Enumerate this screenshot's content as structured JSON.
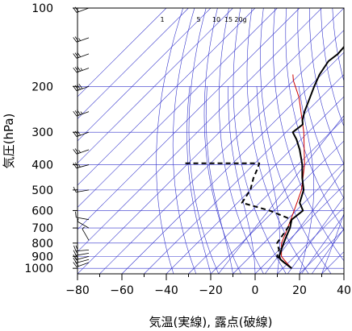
{
  "chart_data": {
    "type": "line",
    "title": "",
    "xlabel": "気温(実線), 露点(破線)",
    "ylabel": "気圧(hPa)",
    "xlim": [
      -80,
      40
    ],
    "ylim": [
      1050,
      100
    ],
    "y_scale": "log",
    "x_ticks": [
      -80,
      -60,
      -40,
      -20,
      0,
      20,
      40
    ],
    "y_ticks": [
      100,
      200,
      300,
      400,
      500,
      600,
      700,
      800,
      900,
      1000
    ],
    "mixing_ratio_labels": [
      "1",
      "5",
      "10",
      "15",
      "20g"
    ],
    "colors": {
      "temperature": "#000000",
      "dewpoint": "#000000",
      "parcel": "#cc0000",
      "background_lines": "#3333cc",
      "wind_barbs": "#000000"
    },
    "series": [
      {
        "type": "temperature",
        "style": "solid",
        "points": [
          {
            "x": 14,
            "y": 1000
          },
          {
            "x": 11,
            "y": 975
          },
          {
            "x": 8,
            "y": 950
          },
          {
            "x": 5,
            "y": 925
          },
          {
            "x": 3,
            "y": 900
          },
          {
            "x": 1,
            "y": 850
          },
          {
            "x": -1,
            "y": 800
          },
          {
            "x": -3,
            "y": 750
          },
          {
            "x": -5,
            "y": 700
          },
          {
            "x": -8,
            "y": 650
          },
          {
            "x": -7,
            "y": 600
          },
          {
            "x": -12,
            "y": 560
          },
          {
            "x": -16,
            "y": 500
          },
          {
            "x": -22,
            "y": 450
          },
          {
            "x": -28,
            "y": 400
          },
          {
            "x": -36,
            "y": 350
          },
          {
            "x": -42,
            "y": 320
          },
          {
            "x": -47,
            "y": 300
          },
          {
            "x": -46,
            "y": 280
          },
          {
            "x": -48,
            "y": 270
          },
          {
            "x": -51,
            "y": 250
          },
          {
            "x": -55,
            "y": 220
          },
          {
            "x": -58,
            "y": 200
          },
          {
            "x": -61,
            "y": 180
          },
          {
            "x": -63,
            "y": 160
          },
          {
            "x": -62,
            "y": 150
          },
          {
            "x": -63,
            "y": 130
          },
          {
            "x": -65,
            "y": 110
          },
          {
            "x": -68,
            "y": 100
          }
        ]
      },
      {
        "type": "dewpoint",
        "style": "dashed",
        "points": [
          {
            "x": 14,
            "y": 1000
          },
          {
            "x": 11,
            "y": 975
          },
          {
            "x": 8,
            "y": 950
          },
          {
            "x": 5,
            "y": 925
          },
          {
            "x": 2,
            "y": 900
          },
          {
            "x": 0,
            "y": 850
          },
          {
            "x": -4,
            "y": 800
          },
          {
            "x": -5,
            "y": 750
          },
          {
            "x": -6,
            "y": 700
          },
          {
            "x": -8,
            "y": 650
          },
          {
            "x": -22,
            "y": 600
          },
          {
            "x": -38,
            "y": 560
          },
          {
            "x": -40,
            "y": 500
          },
          {
            "x": -44,
            "y": 450
          },
          {
            "x": -46,
            "y": 420
          },
          {
            "x": -48,
            "y": 395
          },
          {
            "x": -82,
            "y": 395
          }
        ]
      },
      {
        "type": "parcel",
        "style": "solid",
        "points": [
          {
            "x": 14,
            "y": 1000
          },
          {
            "x": 9,
            "y": 950
          },
          {
            "x": 4,
            "y": 900
          },
          {
            "x": -2,
            "y": 800
          },
          {
            "x": -6,
            "y": 700
          },
          {
            "x": -11,
            "y": 600
          },
          {
            "x": -17,
            "y": 500
          },
          {
            "x": -27,
            "y": 400
          },
          {
            "x": -42,
            "y": 300
          },
          {
            "x": -60,
            "y": 220
          },
          {
            "x": -70,
            "y": 190
          },
          {
            "x": -73,
            "y": 180
          }
        ]
      }
    ],
    "wind_barbs": [
      {
        "pressure": 950,
        "direction_deg": 250,
        "speed_kt": 20
      },
      {
        "pressure": 925,
        "direction_deg": 255,
        "speed_kt": 20
      },
      {
        "pressure": 900,
        "direction_deg": 255,
        "speed_kt": 20
      },
      {
        "pressure": 875,
        "direction_deg": 260,
        "speed_kt": 20
      },
      {
        "pressure": 850,
        "direction_deg": 265,
        "speed_kt": 20
      },
      {
        "pressure": 780,
        "direction_deg": 330,
        "speed_kt": 5
      },
      {
        "pressure": 700,
        "direction_deg": 300,
        "speed_kt": 5
      },
      {
        "pressure": 650,
        "direction_deg": 280,
        "speed_kt": 10
      },
      {
        "pressure": 500,
        "direction_deg": 260,
        "speed_kt": 15
      },
      {
        "pressure": 400,
        "direction_deg": 255,
        "speed_kt": 25
      },
      {
        "pressure": 350,
        "direction_deg": 250,
        "speed_kt": 25
      },
      {
        "pressure": 300,
        "direction_deg": 250,
        "speed_kt": 30
      },
      {
        "pressure": 250,
        "direction_deg": 250,
        "speed_kt": 35
      },
      {
        "pressure": 200,
        "direction_deg": 250,
        "speed_kt": 40
      },
      {
        "pressure": 170,
        "direction_deg": 250,
        "speed_kt": 35
      },
      {
        "pressure": 150,
        "direction_deg": 250,
        "speed_kt": 30
      },
      {
        "pressure": 130,
        "direction_deg": 250,
        "speed_kt": 25
      },
      {
        "pressure": 100,
        "direction_deg": 250,
        "speed_kt": 20
      }
    ]
  }
}
